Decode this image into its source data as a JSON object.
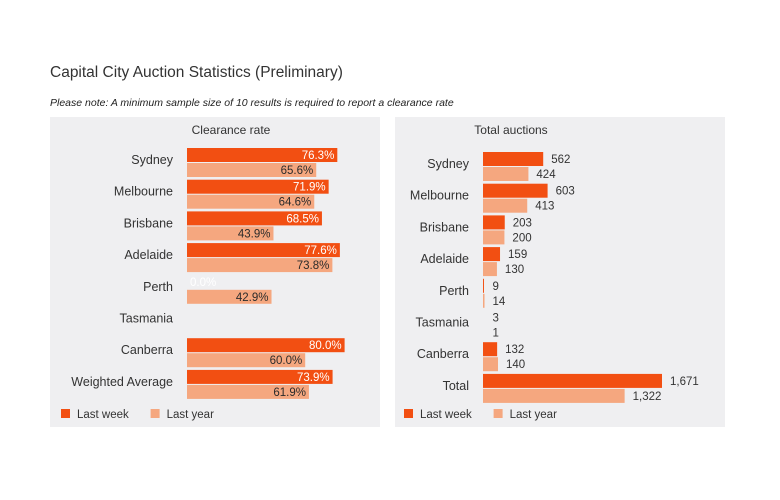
{
  "page": {
    "title": "Capital City Auction Statistics (Preliminary)",
    "note": "Please note: A minimum sample size of 10 results is required to report a clearance rate"
  },
  "colors": {
    "last_week": "#f24f12",
    "last_year": "#f5a77f",
    "panel": "#efeff1"
  },
  "chart_data": [
    {
      "type": "bar",
      "orientation": "horizontal",
      "title": "Clearance rate",
      "categories": [
        "Sydney",
        "Melbourne",
        "Brisbane",
        "Adelaide",
        "Perth",
        "Tasmania",
        "Canberra",
        "Weighted Average"
      ],
      "series": [
        {
          "name": "Last week",
          "values": [
            76.3,
            71.9,
            68.5,
            77.6,
            0.0,
            null,
            80.0,
            73.9
          ],
          "labels": [
            "76.3%",
            "71.9%",
            "68.5%",
            "77.6%",
            "0.0%",
            "",
            "80.0%",
            "73.9%"
          ]
        },
        {
          "name": "Last year",
          "values": [
            65.6,
            64.6,
            43.9,
            73.8,
            42.9,
            null,
            60.0,
            61.9
          ],
          "labels": [
            "65.6%",
            "64.6%",
            "43.9%",
            "73.8%",
            "42.9%",
            "",
            "60.0%",
            "61.9%"
          ]
        }
      ],
      "xlim": [
        0,
        100
      ],
      "legend": "bottom-left"
    },
    {
      "type": "bar",
      "orientation": "horizontal",
      "title": "Total auctions",
      "categories": [
        "Sydney",
        "Melbourne",
        "Brisbane",
        "Adelaide",
        "Perth",
        "Tasmania",
        "Canberra",
        "Total"
      ],
      "series": [
        {
          "name": "Last week",
          "values": [
            562,
            603,
            203,
            159,
            9,
            3,
            132,
            1671
          ],
          "labels": [
            "562",
            "603",
            "203",
            "159",
            "9",
            "3",
            "132",
            "1,671"
          ]
        },
        {
          "name": "Last year",
          "values": [
            424,
            413,
            200,
            130,
            14,
            1,
            140,
            1322
          ],
          "labels": [
            "424",
            "413",
            "200",
            "130",
            "14",
            "1",
            "140",
            "1,322"
          ]
        }
      ],
      "xlim": [
        0,
        1671
      ],
      "legend": "bottom-left"
    }
  ]
}
